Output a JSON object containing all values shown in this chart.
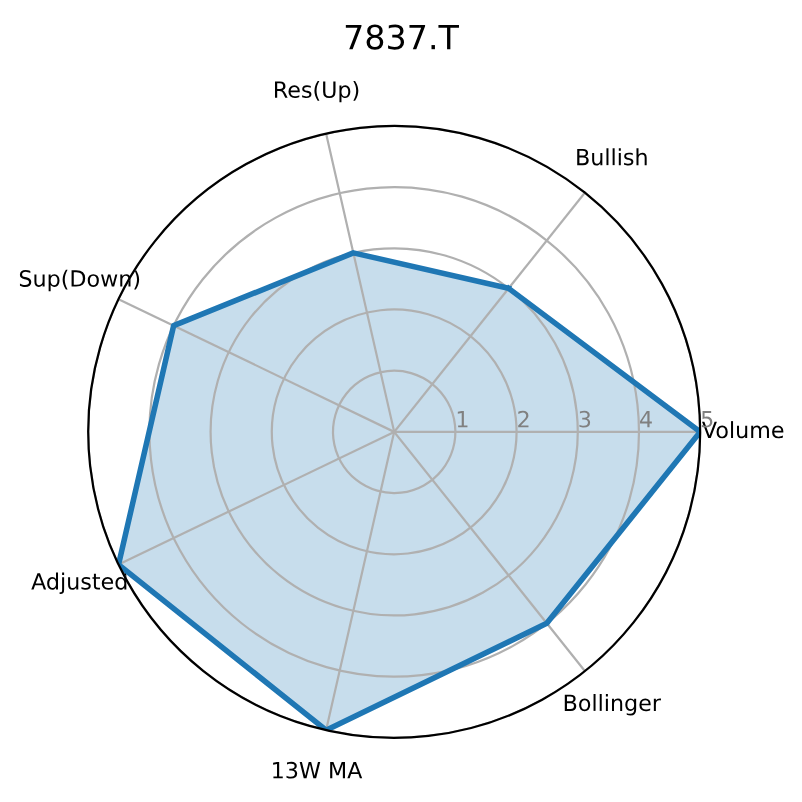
{
  "chart_data": {
    "type": "radar",
    "title": "7837.T",
    "categories": [
      "Bullish",
      "Volume",
      "Bollinger",
      "13W MA",
      "Adjusted",
      "Sup(Down)",
      "Res(Up)"
    ],
    "series": [
      {
        "color": "#1f77b4",
        "values": [
          3,
          5,
          4,
          5,
          5,
          4,
          3
        ]
      }
    ],
    "ylim": [
      0,
      5
    ],
    "yticks": [
      1,
      2,
      3,
      4,
      5
    ],
    "grid": true
  }
}
